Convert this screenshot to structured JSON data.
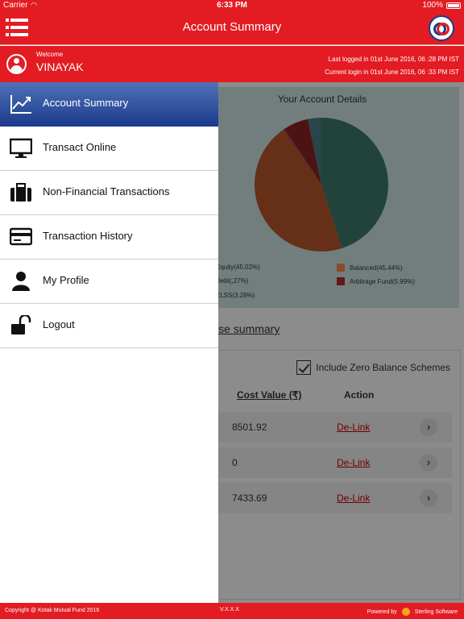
{
  "status_bar": {
    "carrier": "Carrier",
    "time": "6:33 PM",
    "battery": "100%"
  },
  "header": {
    "title": "Account Summary"
  },
  "user": {
    "welcome": "Welcome",
    "name": "VINAYAK",
    "last_login": "Last logged in 01st June 2016, 06 :28 PM IST",
    "current_login": "Current login in 01st June 2016, 06 :33 PM IST"
  },
  "drawer": {
    "items": [
      {
        "label": "Account Summary",
        "icon": "trend-chart-icon"
      },
      {
        "label": "Transact Online",
        "icon": "monitor-icon"
      },
      {
        "label": "Non-Financial Transactions",
        "icon": "briefcase-icon"
      },
      {
        "label": "Transaction History",
        "icon": "credit-card-icon"
      },
      {
        "label": "My Profile",
        "icon": "user-icon"
      },
      {
        "label": "Logout",
        "icon": "unlock-icon"
      }
    ]
  },
  "account_details": {
    "title": "Your Account Details",
    "legend": [
      "Equity(45.02%)",
      "Balanced(45.44%)",
      "Debt(,27%)",
      "Arbitrage Fund(5.99%)",
      "ELSS(3.28%)"
    ]
  },
  "chart_data": {
    "type": "pie",
    "title": "Your Account Details",
    "categories": [
      "Equity",
      "Balanced",
      "Debt",
      "Arbitrage Fund",
      "ELSS"
    ],
    "values": [
      45.02,
      45.44,
      0.27,
      5.99,
      3.28
    ],
    "colors": [
      "#3f7a68",
      "#b8582b",
      "#8a2a6a",
      "#8c2424",
      "#4a7f86"
    ]
  },
  "scheme_summary": {
    "link": "ise summary",
    "zero_balance_label": "Include Zero Balance Schemes",
    "col_cost": "Cost Value (₹)",
    "col_action": "Action",
    "rows": [
      {
        "cost": "8501.92",
        "action": "De-Link"
      },
      {
        "cost": "0",
        "action": "De-Link"
      },
      {
        "cost": "7433.69",
        "action": "De-Link"
      }
    ]
  },
  "footer": {
    "copyright": "Copyright @ Kotak Mutual Fund 2016",
    "version": "V.X.X.X",
    "powered_by": "Powered by",
    "vendor": "Sterling Software"
  },
  "colors": {
    "brand_red": "#e31b23",
    "active_blue": "#1b3a8c"
  }
}
